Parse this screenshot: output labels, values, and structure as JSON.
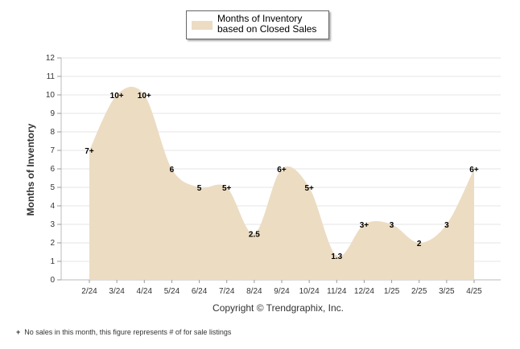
{
  "legend": {
    "label": "Months of Inventory based on Closed Sales",
    "color": "#ecdcc2"
  },
  "copyright": "Copyright © Trendgraphix, Inc.",
  "footnote": {
    "mark": "+",
    "text": "No sales in this month, this figure represents # of for sale listings"
  },
  "chart_data": {
    "type": "area",
    "ylabel": "Months of Inventory",
    "xlabel": "",
    "ylim": [
      0,
      12
    ],
    "yticks": [
      "0",
      "1",
      "2",
      "3",
      "4",
      "5",
      "6",
      "7",
      "8",
      "9",
      "10",
      "11",
      "12"
    ],
    "categories": [
      "2/24",
      "3/24",
      "4/24",
      "5/24",
      "6/24",
      "7/24",
      "8/24",
      "9/24",
      "10/24",
      "11/24",
      "12/24",
      "1/25",
      "2/25",
      "3/25",
      "4/25"
    ],
    "series": [
      {
        "name": "Months of Inventory based on Closed Sales",
        "values": [
          7,
          10,
          10,
          6,
          5,
          5,
          2.5,
          6,
          5,
          1.3,
          3,
          3,
          2,
          3,
          6
        ],
        "labels": [
          "7+",
          "10+",
          "10+",
          "6",
          "5",
          "5+",
          "2.5",
          "6+",
          "5+",
          "1.3",
          "3+",
          "3",
          "2",
          "3",
          "6+"
        ]
      }
    ],
    "fill_color": "#ecdcc2",
    "grid": true
  }
}
